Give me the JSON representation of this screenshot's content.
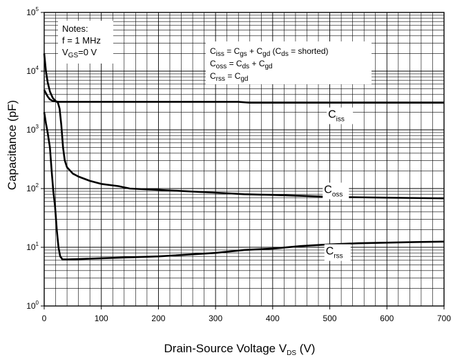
{
  "chart_data": {
    "type": "line",
    "xlabel": "Drain-Source Voltage V",
    "xlabel_sub": "DS",
    "xlabel_unit": " (V)",
    "ylabel": "Capacitance (pF)",
    "y_scale": "log",
    "xlim": [
      0,
      700
    ],
    "ylim": [
      1,
      100000
    ],
    "x_ticks": [
      "0",
      "100",
      "200",
      "300",
      "400",
      "500",
      "600",
      "700"
    ],
    "y_ticks": [
      {
        "base": "10",
        "exp": "0"
      },
      {
        "base": "10",
        "exp": "1"
      },
      {
        "base": "10",
        "exp": "2"
      },
      {
        "base": "10",
        "exp": "3"
      },
      {
        "base": "10",
        "exp": "4"
      },
      {
        "base": "10",
        "exp": "5"
      }
    ],
    "grid": true,
    "notes": {
      "line1": "Notes:",
      "line2": "f = 1 MHz",
      "line3_main": "V",
      "line3_sub": "GS",
      "line3_rest": "=0 V"
    },
    "formulas": [
      {
        "parts": [
          [
            "C",
            ""
          ],
          [
            "iss",
            "sub"
          ],
          [
            " = C",
            ""
          ],
          [
            "gs",
            "sub"
          ],
          [
            " + C",
            ""
          ],
          [
            "gd",
            "sub"
          ],
          [
            " (C",
            ""
          ],
          [
            "ds",
            "sub"
          ],
          [
            " = shorted)",
            ""
          ]
        ]
      },
      {
        "parts": [
          [
            "C",
            ""
          ],
          [
            "oss",
            "sub"
          ],
          [
            " = C",
            ""
          ],
          [
            "ds",
            "sub"
          ],
          [
            " + C",
            ""
          ],
          [
            "gd",
            "sub"
          ]
        ]
      },
      {
        "parts": [
          [
            "C",
            ""
          ],
          [
            "rss",
            "sub"
          ],
          [
            " = C",
            ""
          ],
          [
            "gd",
            "sub"
          ]
        ]
      }
    ],
    "series": [
      {
        "label_main": "C",
        "label_sub": "iss",
        "label_at": [
          497,
          1600
        ],
        "points": [
          [
            0,
            4800
          ],
          [
            3,
            4200
          ],
          [
            6,
            3700
          ],
          [
            10,
            3300
          ],
          [
            15,
            3100
          ],
          [
            25,
            3000
          ],
          [
            50,
            3000
          ],
          [
            200,
            3000
          ],
          [
            340,
            3000
          ],
          [
            360,
            2900
          ],
          [
            500,
            2900
          ],
          [
            700,
            2900
          ]
        ]
      },
      {
        "label_main": "C",
        "label_sub": "oss",
        "label_at": [
          490,
          84
        ],
        "points": [
          [
            0,
            20000
          ],
          [
            3,
            10000
          ],
          [
            6,
            6500
          ],
          [
            10,
            4500
          ],
          [
            15,
            3500
          ],
          [
            20,
            3100
          ],
          [
            24,
            2900
          ],
          [
            27,
            2300
          ],
          [
            30,
            1200
          ],
          [
            33,
            500
          ],
          [
            36,
            300
          ],
          [
            40,
            230
          ],
          [
            50,
            180
          ],
          [
            60,
            160
          ],
          [
            80,
            135
          ],
          [
            100,
            120
          ],
          [
            130,
            110
          ],
          [
            150,
            100
          ],
          [
            200,
            95
          ],
          [
            250,
            90
          ],
          [
            300,
            85
          ],
          [
            350,
            80
          ],
          [
            400,
            78
          ],
          [
            450,
            75
          ],
          [
            500,
            72
          ],
          [
            600,
            70
          ],
          [
            700,
            68
          ]
        ]
      },
      {
        "label_main": "C",
        "label_sub": "rss",
        "label_at": [
          493,
          7.5
        ],
        "points": [
          [
            0,
            2000
          ],
          [
            3,
            1300
          ],
          [
            6,
            900
          ],
          [
            10,
            500
          ],
          [
            13,
            200
          ],
          [
            16,
            90
          ],
          [
            19,
            50
          ],
          [
            22,
            20
          ],
          [
            25,
            10
          ],
          [
            28,
            7
          ],
          [
            32,
            6.2
          ],
          [
            40,
            6.2
          ],
          [
            60,
            6.3
          ],
          [
            100,
            6.5
          ],
          [
            200,
            7
          ],
          [
            300,
            8
          ],
          [
            350,
            9
          ],
          [
            400,
            9.5
          ],
          [
            450,
            10.5
          ],
          [
            500,
            11.2
          ],
          [
            550,
            11.7
          ],
          [
            600,
            12
          ],
          [
            650,
            12.3
          ],
          [
            700,
            12.5
          ]
        ]
      }
    ]
  }
}
